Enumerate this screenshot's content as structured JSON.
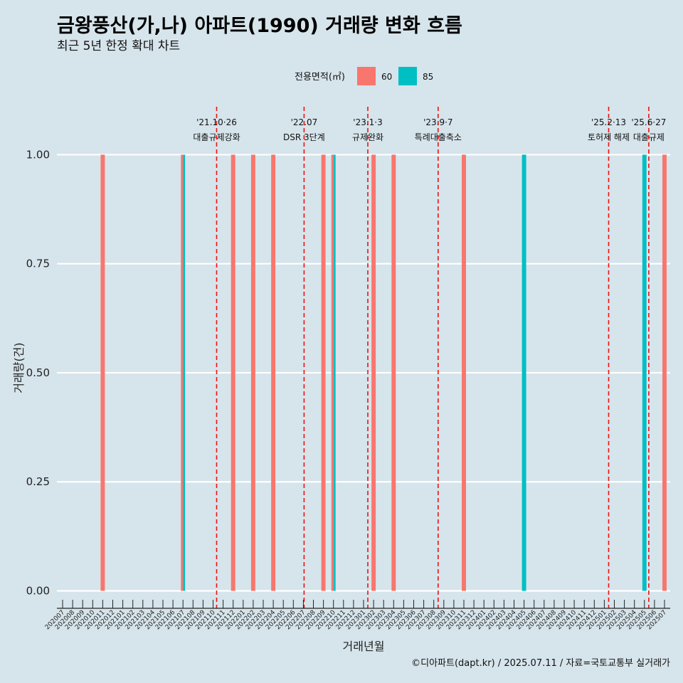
{
  "chart_data": {
    "type": "bar",
    "title": "금왕풍산(가,나) 아파트(1990) 거래량 변화 흐름",
    "subtitle": "최근 5년 한정 확대 차트",
    "xlabel": "거래년월",
    "ylabel": "거래량(건)",
    "ylim": [
      -0.04,
      1.11
    ],
    "yticks": [
      "0.00",
      "0.25",
      "0.50",
      "0.75",
      "1.00"
    ],
    "ytick_values": [
      0,
      0.25,
      0.5,
      0.75,
      1.0
    ],
    "grid": true,
    "legend": {
      "title": "전용면적(㎡)",
      "position": "top"
    },
    "categories": [
      "202007",
      "202008",
      "202009",
      "202010",
      "202011",
      "202012",
      "202101",
      "202102",
      "202103",
      "202104",
      "202105",
      "202106",
      "202107",
      "202108",
      "202109",
      "202110",
      "202111",
      "202112",
      "202201",
      "202202",
      "202203",
      "202204",
      "202205",
      "202206",
      "202207",
      "202208",
      "202209",
      "202210",
      "202211",
      "202212",
      "202301",
      "202302",
      "202303",
      "202304",
      "202305",
      "202306",
      "202307",
      "202308",
      "202309",
      "202310",
      "202311",
      "202312",
      "202401",
      "202402",
      "202403",
      "202404",
      "202405",
      "202406",
      "202407",
      "202408",
      "202409",
      "202410",
      "202411",
      "202412",
      "202501",
      "202502",
      "202503",
      "202504",
      "202505",
      "202506",
      "202507"
    ],
    "series": [
      {
        "name": "60",
        "color": "#f8766d",
        "values": [
          0,
          0,
          0,
          0,
          1,
          0,
          0,
          0,
          0,
          0,
          0,
          0,
          1,
          0,
          0,
          0,
          0,
          1,
          0,
          1,
          0,
          1,
          0,
          0,
          0,
          0,
          1,
          1,
          0,
          0,
          0,
          1,
          0,
          1,
          0,
          0,
          0,
          0,
          0,
          0,
          1,
          0,
          0,
          0,
          0,
          0,
          0,
          0,
          0,
          0,
          0,
          0,
          0,
          0,
          0,
          0,
          0,
          0,
          0,
          0,
          1
        ]
      },
      {
        "name": "85",
        "color": "#00bfc4",
        "values": [
          0,
          0,
          0,
          0,
          0,
          0,
          0,
          0,
          0,
          0,
          0,
          0,
          1,
          0,
          0,
          0,
          0,
          0,
          0,
          0,
          0,
          0,
          0,
          0,
          0,
          0,
          0,
          1,
          0,
          0,
          0,
          0,
          0,
          0,
          0,
          0,
          0,
          0,
          0,
          0,
          0,
          0,
          0,
          0,
          0,
          0,
          1,
          0,
          0,
          0,
          0,
          0,
          0,
          0,
          0,
          0,
          0,
          0,
          1,
          0,
          0
        ]
      }
    ],
    "annotations": [
      {
        "x": "202110",
        "line1": "'21.10·26",
        "line2": "대출규제강화"
      },
      {
        "x": "202207",
        "line1": "'22.07",
        "line2": "DSR 3단계"
      },
      {
        "x": "202301",
        "line1": "'23.1·3",
        "line2": "규제완화"
      },
      {
        "x": "202309",
        "line1": "'23.9·7",
        "line2": "특례대출축소"
      },
      {
        "x": "202502",
        "line1": "'25.2·13",
        "line2": "토허제 해제"
      },
      {
        "x": "202506",
        "line1": "'25.6·27",
        "line2": "대출규제"
      }
    ],
    "caption": "©디아파트(dapt.kr) / 2025.07.11 / 자료=국토교통부 실거래가"
  }
}
